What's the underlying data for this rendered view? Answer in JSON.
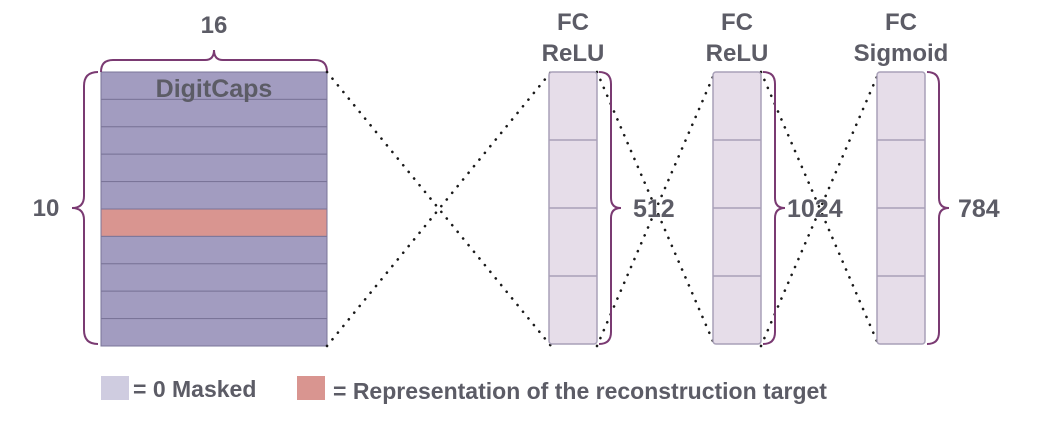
{
  "capsule_block": {
    "title": "DigitCaps",
    "width_label": "16",
    "height_label": "10",
    "rows": 10,
    "highlighted_row": 5
  },
  "layers": [
    {
      "line1": "FC",
      "line2": "ReLU",
      "size": "512"
    },
    {
      "line1": "FC",
      "line2": "ReLU",
      "size": "1024"
    },
    {
      "line1": "FC",
      "line2": "Sigmoid",
      "size": "784"
    }
  ],
  "legend": {
    "masked": "= 0 Masked",
    "target": "= Representation of the reconstruction target"
  },
  "colors": {
    "capsule_fill": "#a29cc0",
    "capsule_line": "#7a7498",
    "target_fill": "#d99590",
    "layer_fill": "#e6dde9",
    "layer_line": "#a8a0b8",
    "brace": "#7a3a72",
    "text": "#5c5c66",
    "dots": "#1a1a1a",
    "legend_masked": "#cfcce0",
    "legend_target": "#d99590"
  }
}
